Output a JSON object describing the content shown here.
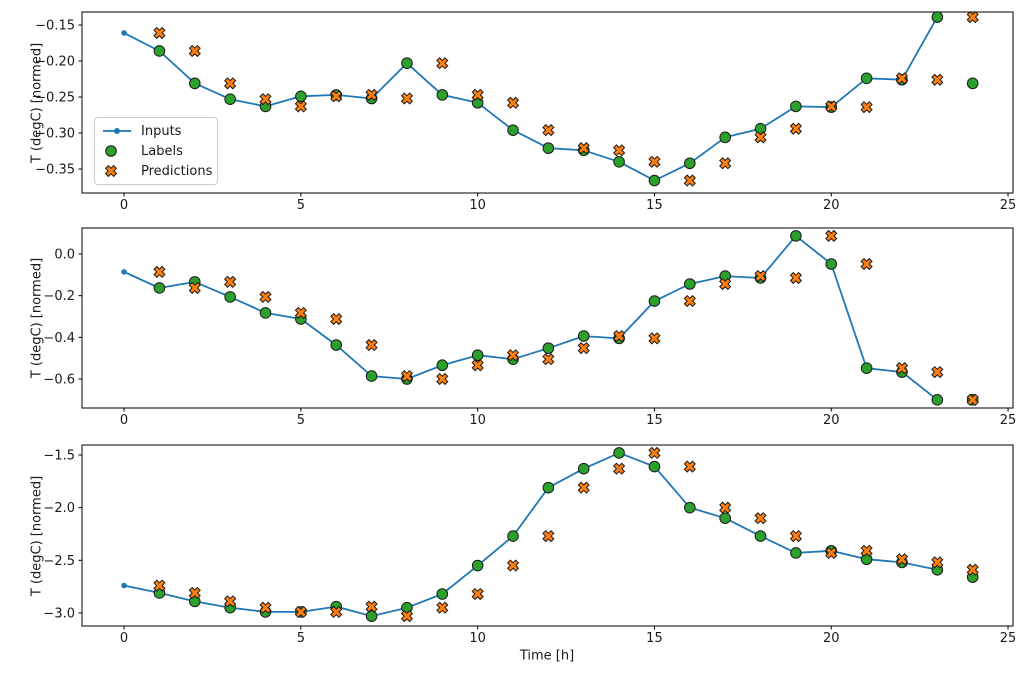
{
  "figure": {
    "xlabel": "Time [h]",
    "ylabel": "T (degC) [normed]"
  },
  "legend": {
    "position": "upper left of first subplot",
    "items": [
      {
        "label": "Inputs",
        "icon": "line-dot-icon",
        "color": "#1f77b4"
      },
      {
        "label": "Labels",
        "icon": "circle-icon",
        "color": "#2ca02c"
      },
      {
        "label": "Predictions",
        "icon": "x-icon",
        "color": "#ff7f0e"
      }
    ]
  },
  "chart_data": [
    {
      "type": "line",
      "subplot": "top",
      "title": "",
      "xlabel": "",
      "ylabel": "T (degC) [normed]",
      "grid": false,
      "xlim": [
        -1.19,
        25.14
      ],
      "ylim": [
        -0.3833,
        -0.1319
      ],
      "xticks": [
        0,
        5,
        10,
        15,
        20,
        25
      ],
      "yticks": [
        -0.15,
        -0.2,
        -0.25,
        -0.3,
        -0.35
      ],
      "ytick_labels": [
        "−0.15",
        "−0.20",
        "−0.25",
        "−0.30",
        "−0.35"
      ],
      "series": [
        {
          "name": "Inputs",
          "style": "line-dot",
          "color": "#1f77b4",
          "x": [
            0,
            1,
            2,
            3,
            4,
            5,
            6,
            7,
            8,
            9,
            10,
            11,
            12,
            13,
            14,
            15,
            16,
            17,
            18,
            19,
            20,
            21,
            22,
            23
          ],
          "y": [
            -0.161,
            -0.186,
            -0.231,
            -0.253,
            -0.263,
            -0.249,
            -0.247,
            -0.252,
            -0.203,
            -0.247,
            -0.258,
            -0.296,
            -0.321,
            -0.324,
            -0.34,
            -0.366,
            -0.342,
            -0.306,
            -0.294,
            -0.263,
            -0.264,
            -0.224,
            -0.226,
            -0.139
          ]
        },
        {
          "name": "Labels",
          "style": "scatter-circle",
          "color": "#2ca02c",
          "edge": "#1a1a1a",
          "x": [
            1,
            2,
            3,
            4,
            5,
            6,
            7,
            8,
            9,
            10,
            11,
            12,
            13,
            14,
            15,
            16,
            17,
            18,
            19,
            20,
            21,
            22,
            23,
            24
          ],
          "y": [
            -0.186,
            -0.231,
            -0.253,
            -0.263,
            -0.249,
            -0.247,
            -0.252,
            -0.203,
            -0.247,
            -0.258,
            -0.296,
            -0.321,
            -0.324,
            -0.34,
            -0.366,
            -0.342,
            -0.306,
            -0.294,
            -0.263,
            -0.264,
            -0.224,
            -0.226,
            -0.139,
            -0.231
          ]
        },
        {
          "name": "Predictions",
          "style": "scatter-x",
          "color": "#ff7f0e",
          "edge": "#1a1a1a",
          "x": [
            1,
            2,
            3,
            4,
            5,
            6,
            7,
            8,
            9,
            10,
            11,
            12,
            13,
            14,
            15,
            16,
            17,
            18,
            19,
            20,
            21,
            22,
            23,
            24
          ],
          "y": [
            -0.161,
            -0.186,
            -0.231,
            -0.253,
            -0.263,
            -0.249,
            -0.247,
            -0.252,
            -0.203,
            -0.247,
            -0.258,
            -0.296,
            -0.321,
            -0.324,
            -0.34,
            -0.366,
            -0.342,
            -0.306,
            -0.294,
            -0.263,
            -0.264,
            -0.224,
            -0.226,
            -0.139
          ]
        }
      ]
    },
    {
      "type": "line",
      "subplot": "middle",
      "title": "",
      "xlabel": "",
      "ylabel": "T (degC) [normed]",
      "grid": false,
      "xlim": [
        -1.19,
        25.14
      ],
      "ylim": [
        -0.7393,
        0.1248
      ],
      "xticks": [
        0,
        5,
        10,
        15,
        20,
        25
      ],
      "yticks": [
        0.0,
        -0.2,
        -0.4,
        -0.6
      ],
      "ytick_labels": [
        "0.0",
        "−0.2",
        "−0.4",
        "−0.6"
      ],
      "series": [
        {
          "name": "Inputs",
          "style": "line-dot",
          "color": "#1f77b4",
          "x": [
            0,
            1,
            2,
            3,
            4,
            5,
            6,
            7,
            8,
            9,
            10,
            11,
            12,
            13,
            14,
            15,
            16,
            17,
            18,
            19,
            20,
            21,
            22,
            23
          ],
          "y": [
            -0.086,
            -0.163,
            -0.134,
            -0.206,
            -0.283,
            -0.312,
            -0.437,
            -0.586,
            -0.6,
            -0.534,
            -0.486,
            -0.505,
            -0.452,
            -0.394,
            -0.405,
            -0.226,
            -0.144,
            -0.106,
            -0.115,
            0.087,
            -0.048,
            -0.548,
            -0.567,
            -0.7
          ]
        },
        {
          "name": "Labels",
          "style": "scatter-circle",
          "color": "#2ca02c",
          "edge": "#1a1a1a",
          "x": [
            1,
            2,
            3,
            4,
            5,
            6,
            7,
            8,
            9,
            10,
            11,
            12,
            13,
            14,
            15,
            16,
            17,
            18,
            19,
            20,
            21,
            22,
            23,
            24
          ],
          "y": [
            -0.163,
            -0.134,
            -0.206,
            -0.283,
            -0.312,
            -0.437,
            -0.586,
            -0.6,
            -0.534,
            -0.486,
            -0.505,
            -0.452,
            -0.394,
            -0.405,
            -0.226,
            -0.144,
            -0.106,
            -0.115,
            0.087,
            -0.048,
            -0.548,
            -0.567,
            -0.7,
            -0.7
          ]
        },
        {
          "name": "Predictions",
          "style": "scatter-x",
          "color": "#ff7f0e",
          "edge": "#1a1a1a",
          "x": [
            1,
            2,
            3,
            4,
            5,
            6,
            7,
            8,
            9,
            10,
            11,
            12,
            13,
            14,
            15,
            16,
            17,
            18,
            19,
            20,
            21,
            22,
            23,
            24
          ],
          "y": [
            -0.086,
            -0.163,
            -0.134,
            -0.206,
            -0.283,
            -0.312,
            -0.437,
            -0.586,
            -0.6,
            -0.534,
            -0.486,
            -0.505,
            -0.452,
            -0.394,
            -0.405,
            -0.226,
            -0.144,
            -0.106,
            -0.115,
            0.087,
            -0.048,
            -0.548,
            -0.567,
            -0.7
          ]
        }
      ]
    },
    {
      "type": "line",
      "subplot": "bottom",
      "title": "",
      "xlabel": "Time [h]",
      "ylabel": "T (degC) [normed]",
      "grid": false,
      "xlim": [
        -1.19,
        25.14
      ],
      "ylim": [
        -3.124,
        -1.405
      ],
      "xticks": [
        0,
        5,
        10,
        15,
        20,
        25
      ],
      "yticks": [
        -1.5,
        -2.0,
        -2.5,
        -3.0
      ],
      "ytick_labels": [
        "−1.5",
        "−2.0",
        "−2.5",
        "−3.0"
      ],
      "series": [
        {
          "name": "Inputs",
          "style": "line-dot",
          "color": "#1f77b4",
          "x": [
            0,
            1,
            2,
            3,
            4,
            5,
            6,
            7,
            8,
            9,
            10,
            11,
            12,
            13,
            14,
            15,
            16,
            17,
            18,
            19,
            20,
            21,
            22,
            23
          ],
          "y": [
            -2.74,
            -2.81,
            -2.89,
            -2.95,
            -2.99,
            -2.99,
            -2.94,
            -3.03,
            -2.95,
            -2.82,
            -2.55,
            -2.27,
            -1.81,
            -1.63,
            -1.48,
            -1.61,
            -2.0,
            -2.1,
            -2.27,
            -2.43,
            -2.41,
            -2.49,
            -2.52,
            -2.59
          ]
        },
        {
          "name": "Labels",
          "style": "scatter-circle",
          "color": "#2ca02c",
          "edge": "#1a1a1a",
          "x": [
            1,
            2,
            3,
            4,
            5,
            6,
            7,
            8,
            9,
            10,
            11,
            12,
            13,
            14,
            15,
            16,
            17,
            18,
            19,
            20,
            21,
            22,
            23,
            24
          ],
          "y": [
            -2.81,
            -2.89,
            -2.95,
            -2.99,
            -2.99,
            -2.94,
            -3.03,
            -2.95,
            -2.82,
            -2.55,
            -2.27,
            -1.81,
            -1.63,
            -1.48,
            -1.61,
            -2.0,
            -2.1,
            -2.27,
            -2.43,
            -2.41,
            -2.49,
            -2.52,
            -2.59,
            -2.66
          ]
        },
        {
          "name": "Predictions",
          "style": "scatter-x",
          "color": "#ff7f0e",
          "edge": "#1a1a1a",
          "x": [
            1,
            2,
            3,
            4,
            5,
            6,
            7,
            8,
            9,
            10,
            11,
            12,
            13,
            14,
            15,
            16,
            17,
            18,
            19,
            20,
            21,
            22,
            23,
            24
          ],
          "y": [
            -2.74,
            -2.81,
            -2.89,
            -2.95,
            -2.99,
            -2.99,
            -2.94,
            -3.03,
            -2.95,
            -2.82,
            -2.55,
            -2.27,
            -1.81,
            -1.63,
            -1.48,
            -1.61,
            -2.0,
            -2.1,
            -2.27,
            -2.43,
            -2.41,
            -2.49,
            -2.52,
            -2.59
          ]
        }
      ]
    }
  ]
}
